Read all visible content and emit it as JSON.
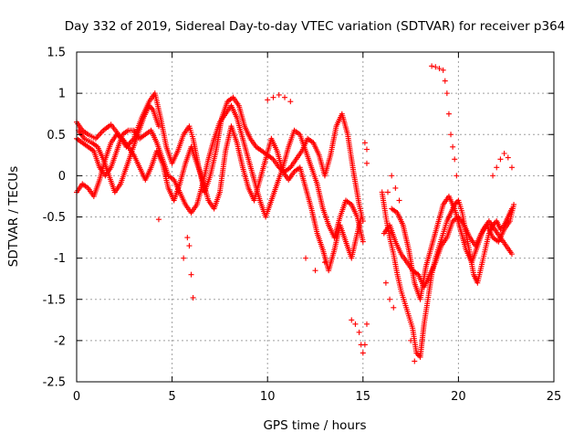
{
  "chart_data": {
    "type": "scatter",
    "title": "Day 332 of 2019, Sidereal Day-to-day VTEC variation (SDTVAR) for receiver p364",
    "xlabel": "GPS time / hours",
    "ylabel": "SDTVAR / TECUs",
    "xlim": [
      0,
      25
    ],
    "ylim": [
      -2.5,
      1.5
    ],
    "xticks": [
      0,
      5,
      10,
      15,
      20,
      25
    ],
    "xtick_labels": [
      "0",
      "5",
      "10",
      "15",
      "20",
      "25"
    ],
    "yticks": [
      -2.5,
      -2,
      -1.5,
      -1,
      -0.5,
      0,
      0.5,
      1,
      1.5
    ],
    "ytick_labels": [
      "-2.5",
      "-2",
      "-1.5",
      "-1",
      "-0.5",
      "0",
      "0.5",
      "1",
      "1.5"
    ],
    "grid": true,
    "marker": "+",
    "color": "#ff0000",
    "series": [
      {
        "name": "track-1",
        "points": [
          [
            0.0,
            0.65
          ],
          [
            0.3,
            0.55
          ],
          [
            0.6,
            0.5
          ],
          [
            1.0,
            0.45
          ],
          [
            1.4,
            0.55
          ],
          [
            1.8,
            0.62
          ],
          [
            2.2,
            0.5
          ],
          [
            2.6,
            0.35
          ],
          [
            3.0,
            0.45
          ],
          [
            3.4,
            0.7
          ],
          [
            3.8,
            0.9
          ],
          [
            4.1,
            1.0
          ],
          [
            4.4,
            0.7
          ],
          [
            4.7,
            0.35
          ],
          [
            5.0,
            0.15
          ],
          [
            5.3,
            0.3
          ],
          [
            5.6,
            0.5
          ],
          [
            5.9,
            0.6
          ],
          [
            6.1,
            0.45
          ],
          [
            6.4,
            0.1
          ],
          [
            6.7,
            -0.2
          ],
          [
            7.0,
            0.0
          ],
          [
            7.3,
            0.3
          ],
          [
            7.6,
            0.7
          ],
          [
            7.9,
            0.9
          ],
          [
            8.2,
            0.95
          ],
          [
            8.5,
            0.85
          ],
          [
            8.8,
            0.6
          ],
          [
            9.1,
            0.45
          ],
          [
            9.4,
            0.35
          ],
          [
            9.7,
            0.3
          ],
          [
            10.0,
            0.25
          ],
          [
            10.3,
            0.2
          ],
          [
            10.6,
            0.1
          ],
          [
            10.9,
            0.05
          ],
          [
            11.2,
            0.1
          ],
          [
            11.5,
            0.2
          ],
          [
            11.8,
            0.3
          ],
          [
            12.1,
            0.45
          ],
          [
            12.4,
            0.4
          ],
          [
            12.7,
            0.25
          ],
          [
            13.0,
            0.0
          ],
          [
            13.3,
            0.25
          ],
          [
            13.6,
            0.6
          ],
          [
            13.9,
            0.75
          ],
          [
            14.2,
            0.5
          ],
          [
            14.5,
            0.05
          ],
          [
            14.8,
            -0.35
          ],
          [
            15.0,
            -0.55
          ]
        ]
      },
      {
        "name": "track-2",
        "points": [
          [
            0.0,
            0.45
          ],
          [
            0.3,
            0.4
          ],
          [
            0.6,
            0.35
          ],
          [
            0.9,
            0.3
          ],
          [
            1.2,
            0.1
          ],
          [
            1.5,
            0.0
          ],
          [
            1.8,
            0.1
          ],
          [
            2.1,
            0.3
          ],
          [
            2.4,
            0.5
          ],
          [
            2.7,
            0.55
          ],
          [
            3.0,
            0.55
          ],
          [
            3.3,
            0.45
          ],
          [
            3.6,
            0.5
          ],
          [
            3.9,
            0.55
          ],
          [
            4.2,
            0.4
          ],
          [
            4.5,
            0.2
          ],
          [
            4.8,
            0.0
          ],
          [
            5.1,
            -0.05
          ],
          [
            5.4,
            -0.2
          ],
          [
            5.7,
            -0.35
          ],
          [
            6.0,
            -0.45
          ],
          [
            6.3,
            -0.35
          ],
          [
            6.6,
            -0.1
          ],
          [
            6.9,
            0.2
          ],
          [
            7.2,
            0.45
          ],
          [
            7.5,
            0.65
          ],
          [
            7.8,
            0.75
          ],
          [
            8.1,
            0.85
          ],
          [
            8.4,
            0.7
          ],
          [
            8.7,
            0.45
          ],
          [
            9.0,
            0.2
          ],
          [
            9.3,
            -0.05
          ],
          [
            9.6,
            -0.3
          ],
          [
            9.9,
            -0.5
          ],
          [
            10.2,
            -0.3
          ],
          [
            10.5,
            -0.1
          ],
          [
            10.8,
            0.1
          ],
          [
            11.1,
            0.35
          ],
          [
            11.4,
            0.55
          ],
          [
            11.7,
            0.5
          ],
          [
            12.0,
            0.3
          ],
          [
            12.3,
            0.1
          ],
          [
            12.6,
            -0.1
          ],
          [
            12.9,
            -0.4
          ],
          [
            13.2,
            -0.6
          ],
          [
            13.5,
            -0.75
          ],
          [
            13.8,
            -0.5
          ],
          [
            14.1,
            -0.3
          ],
          [
            14.4,
            -0.35
          ],
          [
            14.7,
            -0.5
          ],
          [
            15.0,
            -0.8
          ]
        ]
      },
      {
        "name": "track-3",
        "points": [
          [
            0.0,
            -0.2
          ],
          [
            0.3,
            -0.1
          ],
          [
            0.6,
            -0.15
          ],
          [
            0.9,
            -0.25
          ],
          [
            1.2,
            -0.05
          ],
          [
            1.5,
            0.2
          ],
          [
            1.8,
            0.4
          ],
          [
            2.1,
            0.5
          ],
          [
            2.4,
            0.45
          ],
          [
            2.7,
            0.35
          ],
          [
            3.0,
            0.25
          ],
          [
            3.3,
            0.1
          ],
          [
            3.6,
            -0.05
          ],
          [
            3.9,
            0.1
          ],
          [
            4.2,
            0.3
          ],
          [
            4.5,
            0.15
          ],
          [
            4.8,
            -0.15
          ],
          [
            5.1,
            -0.3
          ],
          [
            5.4,
            -0.1
          ],
          [
            5.7,
            0.15
          ],
          [
            6.0,
            0.35
          ],
          [
            6.3,
            0.15
          ],
          [
            6.6,
            -0.05
          ],
          [
            6.9,
            -0.3
          ],
          [
            7.2,
            -0.4
          ],
          [
            7.5,
            -0.2
          ],
          [
            7.8,
            0.3
          ],
          [
            8.1,
            0.6
          ],
          [
            8.4,
            0.4
          ],
          [
            8.7,
            0.1
          ],
          [
            9.0,
            -0.15
          ],
          [
            9.3,
            -0.3
          ],
          [
            9.6,
            -0.05
          ],
          [
            9.9,
            0.2
          ],
          [
            10.2,
            0.45
          ],
          [
            10.5,
            0.3
          ],
          [
            10.8,
            0.05
          ],
          [
            11.1,
            -0.05
          ],
          [
            11.4,
            0.05
          ],
          [
            11.7,
            0.1
          ],
          [
            12.0,
            -0.15
          ],
          [
            12.3,
            -0.4
          ],
          [
            12.6,
            -0.7
          ],
          [
            12.9,
            -0.9
          ],
          [
            13.2,
            -1.15
          ],
          [
            13.5,
            -0.9
          ],
          [
            13.8,
            -0.6
          ],
          [
            14.1,
            -0.8
          ],
          [
            14.4,
            -1.0
          ],
          [
            14.7,
            -0.7
          ],
          [
            14.9,
            -0.5
          ]
        ]
      },
      {
        "name": "track-4",
        "points": [
          [
            0.1,
            0.55
          ],
          [
            0.4,
            0.45
          ],
          [
            0.8,
            0.4
          ],
          [
            1.1,
            0.35
          ],
          [
            1.4,
            0.2
          ],
          [
            1.7,
            0.0
          ],
          [
            2.0,
            -0.2
          ],
          [
            2.3,
            -0.1
          ],
          [
            2.6,
            0.1
          ],
          [
            2.9,
            0.3
          ],
          [
            3.2,
            0.5
          ],
          [
            3.5,
            0.7
          ],
          [
            3.8,
            0.85
          ],
          [
            4.0,
            0.8
          ],
          [
            4.3,
            0.6
          ]
        ]
      },
      {
        "name": "outliers-1",
        "points": [
          [
            4.3,
            -0.53
          ],
          [
            5.6,
            -1.0
          ],
          [
            5.8,
            -0.75
          ],
          [
            6.0,
            -1.2
          ],
          [
            6.1,
            -1.48
          ],
          [
            5.9,
            -0.85
          ],
          [
            12.0,
            -1.0
          ],
          [
            12.5,
            -1.15
          ],
          [
            13.0,
            -1.05
          ],
          [
            10.0,
            0.92
          ],
          [
            10.3,
            0.95
          ],
          [
            10.6,
            0.98
          ],
          [
            10.9,
            0.95
          ],
          [
            11.2,
            0.9
          ]
        ]
      },
      {
        "name": "dip-15h",
        "points": [
          [
            14.4,
            -1.75
          ],
          [
            14.6,
            -1.8
          ],
          [
            14.8,
            -1.9
          ],
          [
            14.9,
            -2.05
          ],
          [
            15.0,
            -2.15
          ],
          [
            15.1,
            -2.05
          ],
          [
            15.2,
            -1.8
          ],
          [
            15.1,
            0.4
          ],
          [
            15.2,
            0.32
          ],
          [
            15.2,
            0.15
          ]
        ]
      },
      {
        "name": "track-late-1",
        "points": [
          [
            16.0,
            -0.2
          ],
          [
            16.2,
            -0.5
          ],
          [
            16.4,
            -0.75
          ],
          [
            16.6,
            -0.95
          ],
          [
            16.8,
            -1.2
          ],
          [
            17.0,
            -1.4
          ],
          [
            17.2,
            -1.55
          ],
          [
            17.4,
            -1.7
          ],
          [
            17.6,
            -1.85
          ],
          [
            17.8,
            -2.15
          ],
          [
            18.0,
            -2.2
          ],
          [
            18.2,
            -1.8
          ],
          [
            18.4,
            -1.5
          ],
          [
            18.6,
            -1.2
          ],
          [
            18.8,
            -1.0
          ],
          [
            19.0,
            -0.85
          ],
          [
            19.2,
            -0.7
          ],
          [
            19.4,
            -0.55
          ],
          [
            19.6,
            -0.45
          ],
          [
            19.8,
            -0.35
          ],
          [
            20.0,
            -0.3
          ],
          [
            20.2,
            -0.45
          ],
          [
            20.4,
            -0.7
          ],
          [
            20.6,
            -0.95
          ],
          [
            20.8,
            -1.2
          ],
          [
            21.0,
            -1.3
          ],
          [
            21.2,
            -1.1
          ],
          [
            21.4,
            -0.9
          ],
          [
            21.6,
            -0.7
          ],
          [
            21.8,
            -0.6
          ],
          [
            22.0,
            -0.55
          ],
          [
            22.2,
            -0.65
          ],
          [
            22.4,
            -0.6
          ],
          [
            22.6,
            -0.5
          ],
          [
            22.8,
            -0.4
          ]
        ]
      },
      {
        "name": "track-late-2",
        "points": [
          [
            16.1,
            -0.7
          ],
          [
            16.4,
            -0.6
          ],
          [
            16.7,
            -0.8
          ],
          [
            17.0,
            -0.95
          ],
          [
            17.3,
            -1.05
          ],
          [
            17.6,
            -1.15
          ],
          [
            17.9,
            -1.2
          ],
          [
            18.2,
            -1.35
          ],
          [
            18.5,
            -1.2
          ],
          [
            18.8,
            -1.05
          ],
          [
            19.1,
            -0.85
          ],
          [
            19.4,
            -0.75
          ],
          [
            19.7,
            -0.55
          ],
          [
            20.0,
            -0.5
          ],
          [
            20.3,
            -0.6
          ],
          [
            20.6,
            -0.75
          ],
          [
            20.9,
            -0.85
          ],
          [
            21.2,
            -0.7
          ],
          [
            21.5,
            -0.6
          ],
          [
            21.8,
            -0.75
          ],
          [
            22.1,
            -0.8
          ],
          [
            22.4,
            -0.65
          ],
          [
            22.7,
            -0.55
          ],
          [
            22.9,
            -0.35
          ]
        ]
      },
      {
        "name": "track-late-3",
        "points": [
          [
            16.5,
            -0.4
          ],
          [
            16.8,
            -0.45
          ],
          [
            17.1,
            -0.6
          ],
          [
            17.4,
            -0.9
          ],
          [
            17.7,
            -1.3
          ],
          [
            18.0,
            -1.5
          ],
          [
            18.3,
            -1.1
          ],
          [
            18.6,
            -0.85
          ],
          [
            18.9,
            -0.6
          ],
          [
            19.2,
            -0.35
          ],
          [
            19.5,
            -0.25
          ],
          [
            19.8,
            -0.4
          ],
          [
            20.1,
            -0.65
          ],
          [
            20.4,
            -0.9
          ],
          [
            20.7,
            -1.05
          ],
          [
            21.0,
            -0.85
          ],
          [
            21.3,
            -0.65
          ],
          [
            21.6,
            -0.55
          ],
          [
            21.9,
            -0.65
          ],
          [
            22.2,
            -0.75
          ],
          [
            22.5,
            -0.85
          ],
          [
            22.8,
            -0.95
          ]
        ]
      },
      {
        "name": "upper-arc-19h",
        "points": [
          [
            18.6,
            1.33
          ],
          [
            18.8,
            1.32
          ],
          [
            19.0,
            1.3
          ],
          [
            19.2,
            1.28
          ],
          [
            19.3,
            1.15
          ],
          [
            19.4,
            1.0
          ],
          [
            19.5,
            0.75
          ],
          [
            19.6,
            0.5
          ],
          [
            19.7,
            0.35
          ],
          [
            19.8,
            0.2
          ],
          [
            19.9,
            0.0
          ]
        ]
      },
      {
        "name": "upper-cluster-22h",
        "points": [
          [
            21.8,
            0.0
          ],
          [
            22.0,
            0.1
          ],
          [
            22.2,
            0.2
          ],
          [
            22.4,
            0.27
          ],
          [
            22.6,
            0.22
          ],
          [
            22.8,
            0.1
          ]
        ]
      },
      {
        "name": "scatter-16h",
        "points": [
          [
            16.3,
            -0.2
          ],
          [
            16.5,
            0.0
          ],
          [
            16.7,
            -0.15
          ],
          [
            16.9,
            -0.3
          ],
          [
            16.2,
            -1.3
          ],
          [
            16.4,
            -1.5
          ],
          [
            16.6,
            -1.6
          ],
          [
            17.5,
            -2.0
          ],
          [
            17.7,
            -2.25
          ]
        ]
      }
    ]
  }
}
